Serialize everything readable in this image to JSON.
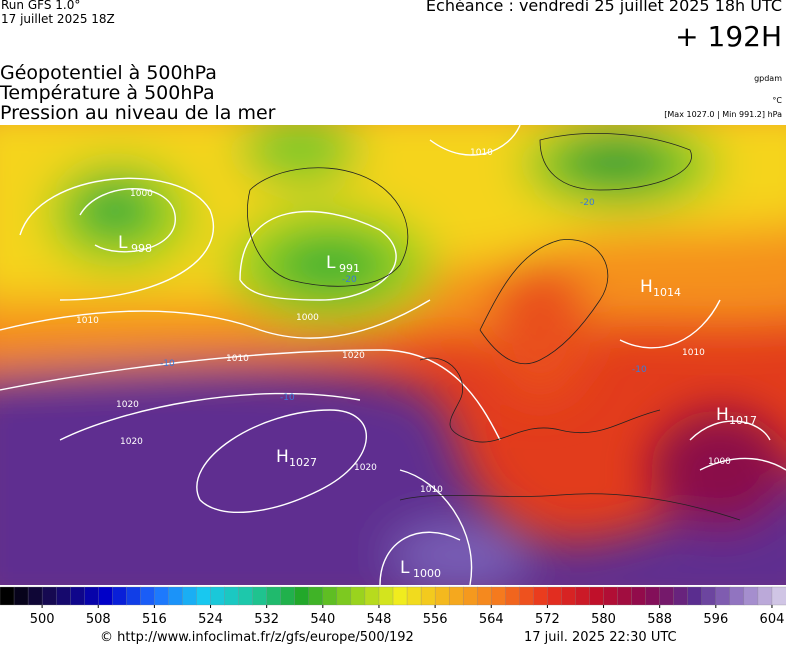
{
  "header": {
    "run": "Run GFS 1.0°",
    "run_date": "17 juillet 2025 18Z",
    "echeance": "Echéance : vendredi 25 juillet 2025 18h UTC",
    "lead": "+ 192H",
    "titles": [
      "Géopotentiel à 500hPa",
      "Température à 500hPa",
      "Pression au niveau de la mer"
    ],
    "units": [
      "gpdam",
      "°C",
      "[Max 1027.0 | Min 991.2] hPa"
    ]
  },
  "map": {
    "pressure_centers": [
      {
        "type": "L",
        "value": 998
      },
      {
        "type": "L",
        "value": 991
      },
      {
        "type": "H",
        "value": 1014
      },
      {
        "type": "H",
        "value": 1027
      },
      {
        "type": "H",
        "value": 1017
      },
      {
        "type": "L",
        "value": 1000
      }
    ],
    "isobar_labels": [
      1000,
      1010,
      1000,
      1010,
      1020,
      1020,
      1020,
      1020,
      1010,
      1010,
      1000,
      1010
    ],
    "temperature_labels": [
      -20,
      -20,
      -10,
      -10,
      -10
    ]
  },
  "colorbar": {
    "range": [
      494,
      606
    ],
    "step": 2,
    "ticks": [
      500,
      508,
      516,
      524,
      532,
      540,
      548,
      556,
      564,
      572,
      580,
      588,
      596,
      604
    ],
    "stops": [
      "#000000",
      "#1a0a5e",
      "#0000c8",
      "#1e6cff",
      "#18c8f0",
      "#1ec8a0",
      "#22a82a",
      "#8ccf1e",
      "#f0ec1e",
      "#f5b01e",
      "#f57a1e",
      "#e8321e",
      "#c0102a",
      "#8a0a50",
      "#5a2d8f",
      "#9a80c8",
      "#e6e0f0"
    ]
  },
  "footer": {
    "url": "© http://www.infoclimat.fr/z/gfs/europe/500/192",
    "timestamp": "17 juil. 2025 22:30 UTC"
  }
}
